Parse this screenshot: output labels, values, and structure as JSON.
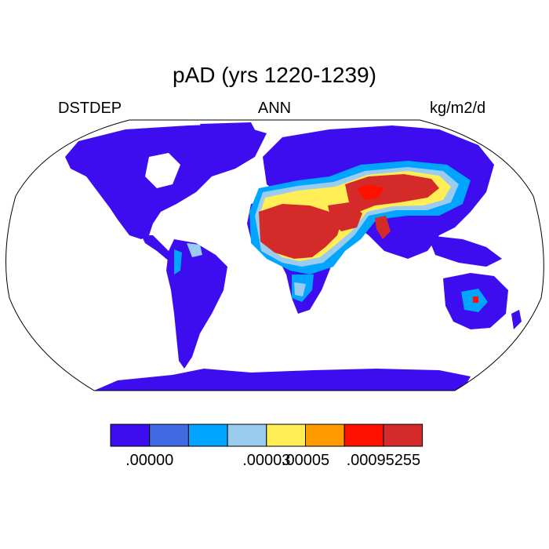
{
  "title": "pAD (yrs 1220-1239)",
  "left_label": "DSTDEP",
  "center_label": "ANN",
  "units": "kg/m2/d",
  "colorbar": {
    "colors": [
      "#3d0df0",
      "#4169e1",
      "#00a5ff",
      "#99ccee",
      "#ffee55",
      "#ff9900",
      "#ff1100",
      "#d52a2a"
    ],
    "tick_labels": [
      {
        "text": ".00000",
        "boundary": 1
      },
      {
        "text": ".00003",
        "boundary": 4
      },
      {
        "text": ".00005",
        "boundary": 5
      },
      {
        "text": ".00095255",
        "boundary": 7
      }
    ]
  },
  "map": {
    "projection": "Robinson",
    "ocean_color": "#ffffff",
    "land_base_color": "#3d0df0",
    "high_regions": [
      "Sahara",
      "Arabian Peninsula",
      "Iran",
      "Central Asia",
      "Gobi",
      "Thar",
      "Australia interior"
    ]
  }
}
